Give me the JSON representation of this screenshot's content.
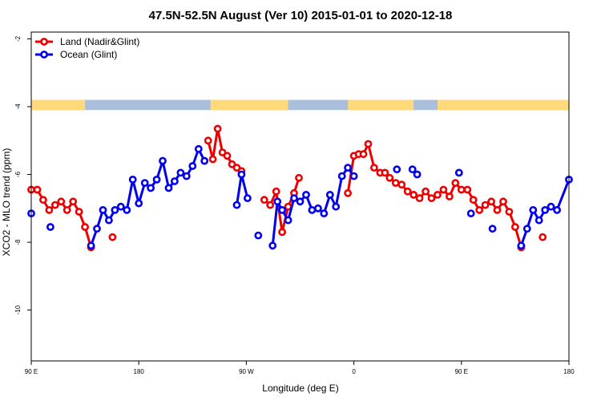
{
  "chart_data": {
    "type": "line",
    "title": "47.5N-52.5N August (Ver 10)   2015-01-01 to 2020-12-18",
    "xlabel": "Longitude (deg E)",
    "ylabel": "XCO2 - MLO trend (ppm)",
    "xlim": [
      90,
      450
    ],
    "ylim": [
      -11.5,
      -1.8
    ],
    "x_ticks": [
      {
        "value": 90,
        "label": "90 E"
      },
      {
        "value": 180,
        "label": "180"
      },
      {
        "value": 270,
        "label": "90 W"
      },
      {
        "value": 360,
        "label": "0"
      },
      {
        "value": 450,
        "label": "90 E"
      },
      {
        "value": 540,
        "label": "180"
      }
    ],
    "x_axis_range_note": "axis spans 90 E through 180 (one full wrap)",
    "y_ticks": [
      {
        "value": -2,
        "label": "-2"
      },
      {
        "value": -4,
        "label": "-4"
      },
      {
        "value": -6,
        "label": "-6"
      },
      {
        "value": -8,
        "label": "-8"
      },
      {
        "value": -10,
        "label": "-10"
      }
    ],
    "legend_position": "top-left",
    "grid": false,
    "land_sea_strip": {
      "y_range": [
        -4.1,
        -3.8
      ],
      "land_color": "#ffd97a",
      "ocean_color": "#a9bfdc",
      "land_segments": [
        [
          90,
          135
        ],
        [
          240,
          305
        ],
        [
          355,
          410
        ],
        [
          430,
          630
        ]
      ]
    },
    "series": [
      {
        "name": "Land (Nadir&Glint)",
        "color": "#ee0000",
        "points": [
          [
            90,
            -6.45
          ],
          [
            95,
            -6.45
          ],
          [
            100,
            -6.75
          ],
          [
            105,
            -7.05
          ],
          [
            110,
            -6.9
          ],
          [
            115,
            -6.8
          ],
          [
            120,
            -7.05
          ],
          [
            125,
            -6.8
          ],
          [
            130,
            -7.1
          ],
          [
            135,
            -7.55
          ],
          [
            140,
            -8.15
          ],
          null,
          [
            158,
            -7.85
          ],
          null,
          [
            238,
            -5.0
          ],
          [
            242,
            -5.55
          ],
          [
            246,
            -4.65
          ],
          [
            250,
            -5.35
          ],
          [
            254,
            -5.45
          ],
          [
            258,
            -5.7
          ],
          [
            262,
            -5.8
          ],
          [
            266,
            -5.9
          ],
          null,
          [
            285,
            -6.75
          ],
          [
            290,
            -6.9
          ],
          [
            295,
            -6.5
          ],
          [
            300,
            -7.7
          ],
          [
            305,
            -6.95
          ],
          [
            310,
            -6.55
          ],
          [
            314,
            -6.1
          ],
          null,
          [
            355,
            -6.55
          ],
          [
            360,
            -5.45
          ],
          [
            364,
            -5.4
          ],
          [
            368,
            -5.4
          ],
          [
            372,
            -5.1
          ],
          [
            377,
            -5.8
          ],
          [
            382,
            -5.95
          ],
          [
            386,
            -5.95
          ],
          [
            390,
            -6.1
          ],
          [
            395,
            -6.25
          ],
          [
            400,
            -6.3
          ],
          [
            405,
            -6.5
          ],
          [
            410,
            -6.6
          ],
          [
            415,
            -6.7
          ],
          [
            420,
            -6.5
          ],
          [
            425,
            -6.7
          ],
          [
            430,
            -6.6
          ],
          [
            435,
            -6.45
          ],
          [
            440,
            -6.65
          ],
          [
            445,
            -6.25
          ],
          [
            450,
            -6.45
          ],
          [
            455,
            -6.45
          ],
          [
            460,
            -6.75
          ],
          [
            465,
            -7.05
          ],
          [
            470,
            -6.9
          ],
          [
            475,
            -6.8
          ],
          [
            480,
            -7.05
          ],
          [
            485,
            -6.8
          ],
          [
            490,
            -7.1
          ],
          [
            495,
            -7.55
          ],
          [
            500,
            -8.15
          ],
          null,
          [
            518,
            -7.85
          ]
        ]
      },
      {
        "name": "Ocean (Glint)",
        "color": "#0000ee",
        "points": [
          [
            90,
            -7.15
          ],
          null,
          [
            106,
            -7.55
          ],
          null,
          [
            140,
            -8.1
          ],
          [
            145,
            -7.6
          ],
          [
            150,
            -7.05
          ],
          [
            155,
            -7.35
          ],
          [
            160,
            -7.05
          ],
          [
            165,
            -6.95
          ],
          [
            170,
            -7.05
          ],
          [
            175,
            -6.15
          ],
          [
            180,
            -6.85
          ],
          [
            185,
            -6.25
          ],
          [
            190,
            -6.4
          ],
          [
            195,
            -6.15
          ],
          [
            200,
            -5.6
          ],
          [
            205,
            -6.4
          ],
          [
            210,
            -6.2
          ],
          [
            215,
            -5.95
          ],
          [
            220,
            -6.05
          ],
          [
            225,
            -5.75
          ],
          [
            230,
            -5.25
          ],
          [
            235,
            -5.6
          ],
          null,
          [
            262,
            -6.9
          ],
          [
            266,
            -6.0
          ],
          [
            271,
            -6.7
          ],
          null,
          [
            280,
            -7.8
          ],
          null,
          [
            292,
            -8.1
          ],
          [
            296,
            -6.8
          ],
          [
            300,
            -7.05
          ],
          [
            305,
            -7.35
          ],
          [
            310,
            -6.7
          ],
          [
            315,
            -6.8
          ],
          [
            320,
            -6.6
          ],
          [
            325,
            -7.05
          ],
          [
            330,
            -7.0
          ],
          [
            335,
            -7.15
          ],
          [
            340,
            -6.6
          ],
          [
            345,
            -6.95
          ],
          [
            350,
            -6.05
          ],
          [
            355,
            -5.8
          ],
          [
            360,
            -6.05
          ],
          null,
          [
            396,
            -5.85
          ],
          null,
          [
            409,
            -5.85
          ],
          [
            413,
            -6.0
          ],
          null,
          [
            448,
            -5.95
          ],
          null,
          [
            458,
            -7.15
          ],
          null,
          [
            476,
            -7.6
          ],
          null,
          [
            500,
            -8.1
          ],
          [
            505,
            -7.6
          ],
          [
            510,
            -7.05
          ],
          [
            515,
            -7.35
          ],
          [
            520,
            -7.05
          ],
          [
            525,
            -6.95
          ],
          [
            530,
            -7.05
          ],
          [
            540,
            -6.15
          ]
        ]
      }
    ]
  }
}
